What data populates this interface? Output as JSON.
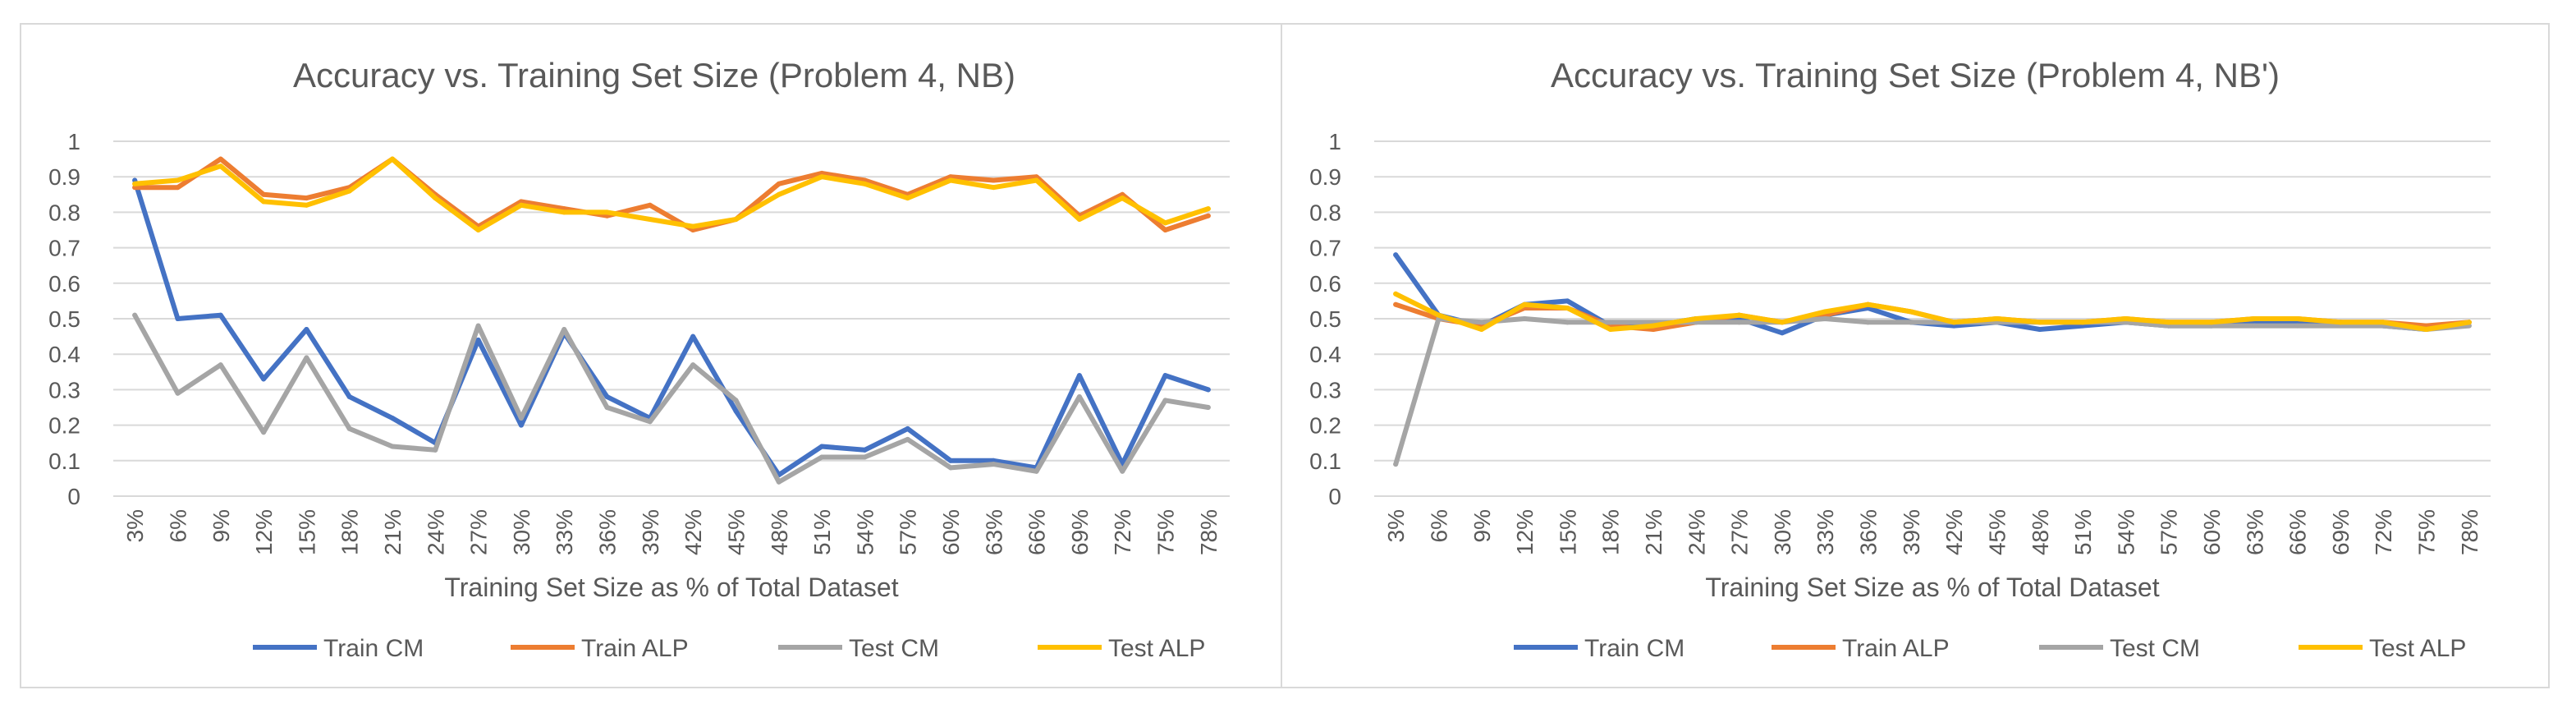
{
  "chart_data": [
    {
      "type": "line",
      "title": "Accuracy vs. Training Set Size (Problem 4, NB)",
      "xlabel": "Training Set Size as % of Total Dataset",
      "ylabel": "",
      "ylim": [
        0,
        1
      ],
      "yticks": [
        "0",
        "0.1",
        "0.2",
        "0.3",
        "0.4",
        "0.5",
        "0.6",
        "0.7",
        "0.8",
        "0.9",
        "1"
      ],
      "grid": true,
      "legend": "bottom",
      "categories": [
        "3%",
        "6%",
        "9%",
        "12%",
        "15%",
        "18%",
        "21%",
        "24%",
        "27%",
        "30%",
        "33%",
        "36%",
        "39%",
        "42%",
        "45%",
        "48%",
        "51%",
        "54%",
        "57%",
        "60%",
        "63%",
        "66%",
        "69%",
        "72%",
        "75%",
        "78%"
      ],
      "series": [
        {
          "name": "Train CM",
          "color": "#4472c4",
          "values": [
            0.89,
            0.5,
            0.51,
            0.33,
            0.47,
            0.28,
            0.22,
            0.15,
            0.44,
            0.2,
            0.46,
            0.28,
            0.22,
            0.45,
            0.24,
            0.06,
            0.14,
            0.13,
            0.19,
            0.1,
            0.1,
            0.08,
            0.34,
            0.09,
            0.34,
            0.3
          ]
        },
        {
          "name": "Train ALP",
          "color": "#ed7d31",
          "values": [
            0.87,
            0.87,
            0.95,
            0.85,
            0.84,
            0.87,
            0.95,
            0.85,
            0.76,
            0.83,
            0.81,
            0.79,
            0.82,
            0.75,
            0.78,
            0.88,
            0.91,
            0.89,
            0.85,
            0.9,
            0.89,
            0.9,
            0.79,
            0.85,
            0.75,
            0.79
          ]
        },
        {
          "name": "Test CM",
          "color": "#a5a5a5",
          "values": [
            0.51,
            0.29,
            0.37,
            0.18,
            0.39,
            0.19,
            0.14,
            0.13,
            0.48,
            0.22,
            0.47,
            0.25,
            0.21,
            0.37,
            0.27,
            0.04,
            0.11,
            0.11,
            0.16,
            0.08,
            0.09,
            0.07,
            0.28,
            0.07,
            0.27,
            0.25
          ]
        },
        {
          "name": "Test ALP",
          "color": "#ffc000",
          "values": [
            0.88,
            0.89,
            0.93,
            0.83,
            0.82,
            0.86,
            0.95,
            0.84,
            0.75,
            0.82,
            0.8,
            0.8,
            0.78,
            0.76,
            0.78,
            0.85,
            0.9,
            0.88,
            0.84,
            0.89,
            0.87,
            0.89,
            0.78,
            0.84,
            0.77,
            0.81
          ]
        }
      ]
    },
    {
      "type": "line",
      "title": "Accuracy vs. Training Set Size (Problem 4, NB')",
      "xlabel": "Training Set Size as % of Total Dataset",
      "ylabel": "",
      "ylim": [
        0,
        1
      ],
      "yticks": [
        "0",
        "0.1",
        "0.2",
        "0.3",
        "0.4",
        "0.5",
        "0.6",
        "0.7",
        "0.8",
        "0.9",
        "1"
      ],
      "grid": true,
      "legend": "bottom",
      "categories": [
        "3%",
        "6%",
        "9%",
        "12%",
        "15%",
        "18%",
        "21%",
        "24%",
        "27%",
        "30%",
        "33%",
        "36%",
        "39%",
        "42%",
        "45%",
        "48%",
        "51%",
        "54%",
        "57%",
        "60%",
        "63%",
        "66%",
        "69%",
        "72%",
        "75%",
        "78%"
      ],
      "series": [
        {
          "name": "Train CM",
          "color": "#4472c4",
          "values": [
            0.68,
            0.51,
            0.48,
            0.54,
            0.55,
            0.48,
            0.48,
            0.5,
            0.5,
            0.46,
            0.51,
            0.53,
            0.49,
            0.48,
            0.49,
            0.47,
            0.48,
            0.49,
            0.48,
            0.48,
            0.49,
            0.49,
            0.49,
            0.48,
            0.47,
            0.49
          ]
        },
        {
          "name": "Train ALP",
          "color": "#ed7d31",
          "values": [
            0.54,
            0.5,
            0.48,
            0.53,
            0.53,
            0.48,
            0.47,
            0.49,
            0.51,
            0.49,
            0.51,
            0.54,
            0.52,
            0.49,
            0.5,
            0.49,
            0.49,
            0.5,
            0.49,
            0.49,
            0.5,
            0.5,
            0.49,
            0.49,
            0.48,
            0.49
          ]
        },
        {
          "name": "Test CM",
          "color": "#a5a5a5",
          "values": [
            0.09,
            0.5,
            0.49,
            0.5,
            0.49,
            0.49,
            0.49,
            0.49,
            0.49,
            0.49,
            0.5,
            0.49,
            0.49,
            0.49,
            0.49,
            0.49,
            0.49,
            0.49,
            0.48,
            0.48,
            0.48,
            0.48,
            0.48,
            0.48,
            0.47,
            0.48
          ]
        },
        {
          "name": "Test ALP",
          "color": "#ffc000",
          "values": [
            0.57,
            0.51,
            0.47,
            0.54,
            0.53,
            0.47,
            0.48,
            0.5,
            0.51,
            0.49,
            0.52,
            0.54,
            0.52,
            0.49,
            0.5,
            0.49,
            0.49,
            0.5,
            0.49,
            0.49,
            0.5,
            0.5,
            0.49,
            0.49,
            0.47,
            0.49
          ]
        }
      ]
    }
  ]
}
